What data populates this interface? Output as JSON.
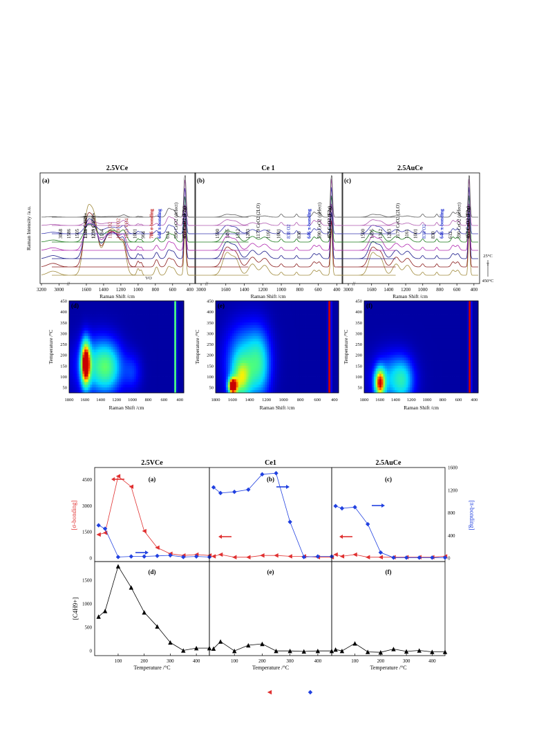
{
  "figure_top": {
    "panels": [
      {
        "id": "a",
        "title": "2.5VCe",
        "letter": "(a)",
        "y_axis_label": "Raman Intensity /a.u.",
        "x_axis_label": "Raman Shift /cm",
        "x_ticks": [
          "3200",
          "3000",
          "1600",
          "1400",
          "1200",
          "1000",
          "800",
          "600",
          "400"
        ],
        "peak_labels": [
          "3068",
          "1586",
          "1505",
          "1346 C4H9+",
          "1239 C4H9+",
          "1164",
          "1121 O2",
          "1019 VO2",
          "1033 VO4",
          "1001",
          "964",
          "786 σ-bonding",
          "646 π-bonding",
          "614",
          "590 CeO2 (defect)",
          "457 CeO2 (F2g)"
        ],
        "annotation": "VO"
      },
      {
        "id": "b",
        "title": "Ce 1",
        "letter": "(b)",
        "x_axis_label": "Raman Shift /cm",
        "x_ticks": [
          "3000",
          "1600",
          "1400",
          "1200",
          "1000",
          "800",
          "600",
          "400"
        ],
        "peak_labels": [
          "1590",
          "1495",
          "1312",
          "1283",
          "1179 CeO2 (2LO)",
          "1161",
          "1001",
          "838 O2",
          "830",
          "646 π-bonding",
          "590 CeO2 (defect)",
          "457 CeO2 (F2g)"
        ]
      },
      {
        "id": "c",
        "title": "2.5AuCe",
        "letter": "(c)",
        "x_axis_label": "Raman Shift /cm",
        "x_ticks": [
          "3000",
          "1600",
          "1400",
          "1200",
          "1000",
          "800",
          "600",
          "400"
        ],
        "peak_labels": [
          "1590",
          "1495",
          "1312",
          "1283",
          "1179 CeO2 (2LO)",
          "1161",
          "1001",
          "838 O2",
          "830",
          "646 π-bonding",
          "612",
          "590 CeO2 (defect)",
          "457 CeO2 (F2g)"
        ],
        "temp_high": "25°C",
        "temp_arrow": "T",
        "temp_low": "450°C"
      }
    ]
  },
  "figure_maps": {
    "panels": [
      {
        "id": "d",
        "letter": "(d)",
        "y_axis_label": "Temperature /°C",
        "x_axis_label": "Raman Shift /cm"
      },
      {
        "id": "e",
        "letter": "(e)",
        "y_axis_label": "Temperature /°C",
        "x_axis_label": "Raman Shift /cm"
      },
      {
        "id": "f",
        "letter": "(f)",
        "y_axis_label": "Temperature /°C",
        "x_axis_label": "Raman Shift /cm"
      }
    ],
    "x_ticks": [
      "1800",
      "1600",
      "1400",
      "1200",
      "1000",
      "800",
      "600",
      "400"
    ],
    "y_ticks": [
      "450",
      "400",
      "350",
      "300",
      "250",
      "200",
      "150",
      "100",
      "50"
    ]
  },
  "figure_bottom": {
    "titles": [
      "2.5VCe",
      "Ce1",
      "2.5AuCe"
    ],
    "top_letters": [
      "(a)",
      "(b)",
      "(c)"
    ],
    "bottom_letters": [
      "(d)",
      "(e)",
      "(f)"
    ],
    "left_axis_label": "[σ-bonding]",
    "right_axis_label": "[π-bonding]",
    "bottom_axis_label": "[C4H9+]",
    "x_axis_label": "Temperature /°C",
    "left_ticks": [
      "4500",
      "3000",
      "1500",
      "0"
    ],
    "right_ticks": [
      "1600",
      "1200",
      "800",
      "400",
      "0"
    ],
    "bottom_ticks": [
      "1500",
      "1000",
      "500",
      "0"
    ],
    "x_ticks": [
      "100",
      "200",
      "300",
      "400"
    ]
  },
  "chart_data": [
    {
      "type": "line",
      "panel": "a",
      "title": "2.5VCe",
      "xlabel": "Raman Shift /cm",
      "ylabel": "Raman Intensity /a.u.",
      "x_range": [
        3200,
        350
      ],
      "series": [
        {
          "color": "#a08a3c"
        },
        {
          "color": "#8a1a1a"
        },
        {
          "color": "#1a1a8a"
        },
        {
          "color": "#b02ab0"
        },
        {
          "color": "#1a7a1a"
        },
        {
          "color": "#3a3ab0"
        },
        {
          "color": "#b05ab0"
        },
        {
          "color": "#5a5a5a"
        }
      ]
    },
    {
      "type": "line",
      "panel": "b",
      "title": "Ce 1",
      "xlabel": "Raman Shift /cm",
      "x_range": [
        3100,
        350
      ],
      "series": [
        {
          "color": "#a08a3c"
        },
        {
          "color": "#8a1a1a"
        },
        {
          "color": "#1a1a8a"
        },
        {
          "color": "#b02ab0"
        },
        {
          "color": "#1a7a1a"
        },
        {
          "color": "#3a3ab0"
        },
        {
          "color": "#b05ab0"
        },
        {
          "color": "#5a5a5a"
        }
      ]
    },
    {
      "type": "line",
      "panel": "c",
      "title": "2.5AuCe",
      "xlabel": "Raman Shift /cm",
      "x_range": [
        3100,
        350
      ],
      "series": [
        {
          "color": "#a08a3c"
        },
        {
          "color": "#8a1a1a"
        },
        {
          "color": "#1a1a8a"
        },
        {
          "color": "#b02ab0"
        },
        {
          "color": "#1a7a1a"
        },
        {
          "color": "#3a3ab0"
        },
        {
          "color": "#b05ab0"
        },
        {
          "color": "#5a5a5a"
        }
      ]
    },
    {
      "type": "heatmap",
      "panel": "d",
      "xlabel": "Raman Shift /cm",
      "ylabel": "Temperature /°C",
      "x_range": [
        1800,
        350
      ],
      "y_range": [
        25,
        450
      ],
      "hotspots": [
        {
          "x": 1590,
          "y": 160,
          "sx": 40,
          "sy": 70,
          "level": 1.0
        },
        {
          "x": 1450,
          "y": 150,
          "sx": 180,
          "sy": 90,
          "level": 0.35
        },
        {
          "x": 1300,
          "y": 140,
          "sx": 120,
          "sy": 80,
          "level": 0.3
        },
        {
          "x": 1000,
          "y": 120,
          "sx": 80,
          "sy": 60,
          "level": 0.15
        }
      ],
      "band": {
        "x": 457,
        "level": 0.55
      }
    },
    {
      "type": "heatmap",
      "panel": "e",
      "xlabel": "Raman Shift /cm",
      "ylabel": "Temperature /°C",
      "x_range": [
        1800,
        350
      ],
      "y_range": [
        25,
        450
      ],
      "hotspots": [
        {
          "x": 1600,
          "y": 55,
          "sx": 35,
          "sy": 25,
          "level": 1.0
        },
        {
          "x": 1500,
          "y": 80,
          "sx": 80,
          "sy": 70,
          "level": 0.45
        },
        {
          "x": 1450,
          "y": 180,
          "sx": 160,
          "sy": 110,
          "level": 0.35
        },
        {
          "x": 1280,
          "y": 150,
          "sx": 90,
          "sy": 110,
          "level": 0.3
        }
      ],
      "band": {
        "x": 457,
        "level": 1.0
      }
    },
    {
      "type": "heatmap",
      "panel": "f",
      "xlabel": "Raman Shift /cm",
      "ylabel": "Temperature /°C",
      "x_range": [
        1800,
        350
      ],
      "y_range": [
        25,
        450
      ],
      "hotspots": [
        {
          "x": 1600,
          "y": 70,
          "sx": 45,
          "sy": 45,
          "level": 0.8
        },
        {
          "x": 1450,
          "y": 90,
          "sx": 170,
          "sy": 80,
          "level": 0.3
        },
        {
          "x": 1300,
          "y": 80,
          "sx": 90,
          "sy": 70,
          "level": 0.25
        }
      ],
      "band": {
        "x": 457,
        "level": 1.0
      }
    },
    {
      "type": "line",
      "panel": "a",
      "title": "2.5VCe",
      "xlabel": "Temperature /°C",
      "x_range": [
        10,
        450
      ],
      "left_range": [
        -200,
        5200
      ],
      "right_range": [
        -60,
        1600
      ],
      "series": [
        {
          "name": "[σ-bonding]",
          "axis": "left",
          "color": "#e03030",
          "marker": "triangle-left",
          "x": [
            25,
            50,
            100,
            150,
            200,
            250,
            300,
            350,
            400,
            450
          ],
          "y": [
            1350,
            1450,
            4700,
            4100,
            1550,
            600,
            250,
            150,
            200,
            150
          ]
        },
        {
          "name": "[π-bonding]",
          "axis": "right",
          "color": "#2040e0",
          "marker": "diamond",
          "x": [
            25,
            50,
            100,
            150,
            200,
            250,
            300,
            350,
            400,
            450
          ],
          "y": [
            580,
            520,
            20,
            30,
            30,
            40,
            50,
            20,
            30,
            20
          ]
        }
      ]
    },
    {
      "type": "line",
      "panel": "b",
      "title": "Ce1",
      "xlabel": "Temperature /°C",
      "x_range": [
        10,
        450
      ],
      "left_range": [
        -200,
        5200
      ],
      "right_range": [
        -60,
        1600
      ],
      "series": [
        {
          "name": "[σ-bonding]",
          "axis": "left",
          "color": "#e03030",
          "marker": "triangle-left",
          "x": [
            25,
            50,
            100,
            150,
            200,
            250,
            300,
            350,
            400,
            450
          ],
          "y": [
            100,
            200,
            50,
            50,
            150,
            150,
            100,
            100,
            50,
            50
          ]
        },
        {
          "name": "[π-bonding]",
          "axis": "right",
          "color": "#2040e0",
          "marker": "diamond",
          "x": [
            25,
            50,
            100,
            150,
            200,
            250,
            300,
            350,
            400,
            450
          ],
          "y": [
            1250,
            1150,
            1170,
            1210,
            1480,
            1500,
            640,
            20,
            30,
            30
          ]
        }
      ]
    },
    {
      "type": "line",
      "panel": "c",
      "title": "2.5AuCe",
      "xlabel": "Temperature /°C",
      "x_range": [
        10,
        450
      ],
      "left_range": [
        -200,
        5200
      ],
      "right_range": [
        -60,
        1600
      ],
      "series": [
        {
          "name": "[σ-bonding]",
          "axis": "left",
          "color": "#e03030",
          "marker": "triangle-left",
          "x": [
            25,
            50,
            100,
            150,
            200,
            250,
            300,
            350,
            400,
            450
          ],
          "y": [
            200,
            100,
            200,
            50,
            50,
            50,
            50,
            50,
            50,
            100
          ]
        },
        {
          "name": "[π-bonding]",
          "axis": "right",
          "color": "#2040e0",
          "marker": "diamond",
          "x": [
            25,
            50,
            100,
            150,
            200,
            250,
            300,
            350,
            400,
            450
          ],
          "y": [
            920,
            880,
            900,
            600,
            100,
            10,
            10,
            10,
            10,
            10
          ]
        }
      ]
    },
    {
      "type": "line",
      "panel": "d",
      "xlabel": "Temperature /°C",
      "ylabel": "[C4H9+]",
      "x_range": [
        10,
        450
      ],
      "y_range": [
        -100,
        1900
      ],
      "series": [
        {
          "name": "[C4H9+]",
          "color": "#000000",
          "marker": "triangle-up",
          "x": [
            25,
            50,
            100,
            150,
            200,
            250,
            300,
            350,
            400,
            450
          ],
          "y": [
            730,
            850,
            1800,
            1350,
            820,
            520,
            180,
            10,
            60,
            60
          ]
        }
      ]
    },
    {
      "type": "line",
      "panel": "e",
      "xlabel": "Temperature /°C",
      "x_range": [
        10,
        450
      ],
      "y_range": [
        -100,
        1900
      ],
      "series": [
        {
          "name": "[C4H9+]",
          "color": "#000000",
          "marker": "triangle-up",
          "x": [
            25,
            50,
            100,
            150,
            200,
            250,
            300,
            350,
            400,
            450
          ],
          "y": [
            50,
            200,
            0,
            120,
            150,
            0,
            0,
            -10,
            0,
            0
          ]
        }
      ]
    },
    {
      "type": "line",
      "panel": "f",
      "xlabel": "Temperature /°C",
      "x_range": [
        10,
        450
      ],
      "y_range": [
        -100,
        1900
      ],
      "series": [
        {
          "name": "[C4H9+]",
          "color": "#000000",
          "marker": "triangle-up",
          "x": [
            25,
            50,
            100,
            150,
            200,
            250,
            300,
            350,
            400,
            450
          ],
          "y": [
            30,
            0,
            160,
            -20,
            -30,
            40,
            -10,
            10,
            -20,
            -20
          ]
        }
      ]
    }
  ],
  "legend_markers": [
    {
      "marker": "triangle-left",
      "color": "#e03030"
    },
    {
      "marker": "diamond",
      "color": "#2040e0"
    }
  ]
}
